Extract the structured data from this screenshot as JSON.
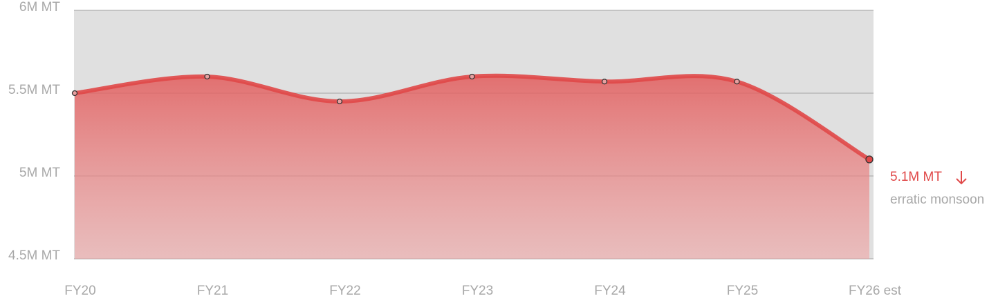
{
  "chart_data": {
    "type": "area",
    "categories": [
      "FY20",
      "FY21",
      "FY22",
      "FY23",
      "FY24",
      "FY25",
      "FY26 est"
    ],
    "values": [
      5.5,
      5.6,
      5.45,
      5.6,
      5.57,
      5.57,
      5.1
    ],
    "value_labels": [
      null,
      null,
      null,
      null,
      null,
      null,
      "5.1M MT"
    ],
    "annotation": "erratic monsoon",
    "color": "#e04848",
    "ylim": [
      4.5,
      6
    ],
    "yticks": [
      {
        "value": 4.5,
        "label": "4.5M MT"
      },
      {
        "value": 5,
        "label": "5M MT"
      },
      {
        "value": 5.5,
        "label": "5.5M MT"
      },
      {
        "value": 6,
        "label": "6M MT"
      }
    ],
    "grid": true
  }
}
